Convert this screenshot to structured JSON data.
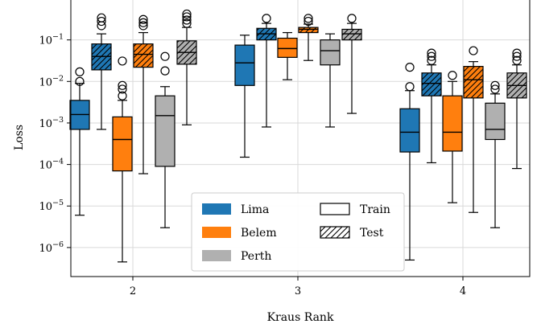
{
  "chart_data": {
    "type": "boxplot",
    "title": "",
    "xlabel": "Kraus Rank",
    "ylabel": "Loss",
    "yscale": "log",
    "ylim": [
      2e-07,
      1.0
    ],
    "y_ticks": [
      {
        "value": 1e-06,
        "base": "10",
        "exp": "−6"
      },
      {
        "value": 1e-05,
        "base": "10",
        "exp": "−5"
      },
      {
        "value": 0.0001,
        "base": "10",
        "exp": "−4"
      },
      {
        "value": 0.001,
        "base": "10",
        "exp": "−3"
      },
      {
        "value": 0.01,
        "base": "10",
        "exp": "−2"
      },
      {
        "value": 0.1,
        "base": "10",
        "exp": "−1"
      }
    ],
    "categories": [
      "2",
      "3",
      "4"
    ],
    "grid": true,
    "legend_position": "lower-center",
    "devices": [
      {
        "name": "Lima",
        "color": "#1f77b4"
      },
      {
        "name": "Belem",
        "color": "#ff7f0e"
      },
      {
        "name": "Perth",
        "color": "#b0b0b0"
      }
    ],
    "styles": [
      {
        "name": "Train",
        "hatch": false
      },
      {
        "name": "Test",
        "hatch": true
      }
    ],
    "boxes": [
      {
        "category": "2",
        "device": "Lima",
        "split": "Train",
        "whisker_low": 6e-06,
        "q1": 0.0007,
        "median": 0.0016,
        "q3": 0.0035,
        "whisker_high": 0.009,
        "outliers": [
          0.01,
          0.017
        ]
      },
      {
        "category": "2",
        "device": "Lima",
        "split": "Test",
        "whisker_low": 0.0007,
        "q1": 0.019,
        "median": 0.04,
        "q3": 0.08,
        "whisker_high": 0.14,
        "outliers": [
          0.22,
          0.28,
          0.34
        ]
      },
      {
        "category": "2",
        "device": "Belem",
        "split": "Train",
        "whisker_low": 4.5e-07,
        "q1": 7e-05,
        "median": 0.0004,
        "q3": 0.0014,
        "whisker_high": 0.0035,
        "outliers": [
          0.0045,
          0.0065,
          0.008,
          0.031
        ]
      },
      {
        "category": "2",
        "device": "Belem",
        "split": "Test",
        "whisker_low": 6e-05,
        "q1": 0.022,
        "median": 0.045,
        "q3": 0.08,
        "whisker_high": 0.15,
        "outliers": [
          0.22,
          0.26,
          0.31
        ]
      },
      {
        "category": "2",
        "device": "Perth",
        "split": "Train",
        "whisker_low": 3e-06,
        "q1": 9e-05,
        "median": 0.0015,
        "q3": 0.0045,
        "whisker_high": 0.0075,
        "outliers": [
          0.018,
          0.04
        ]
      },
      {
        "category": "2",
        "device": "Perth",
        "split": "Test",
        "whisker_low": 0.0009,
        "q1": 0.026,
        "median": 0.05,
        "q3": 0.095,
        "whisker_high": 0.2,
        "outliers": [
          0.25,
          0.3,
          0.36,
          0.42
        ]
      },
      {
        "category": "3",
        "device": "Lima",
        "split": "Train",
        "whisker_low": 0.00015,
        "q1": 0.008,
        "median": 0.028,
        "q3": 0.075,
        "whisker_high": 0.13,
        "outliers": []
      },
      {
        "category": "3",
        "device": "Lima",
        "split": "Test",
        "whisker_low": 0.0008,
        "q1": 0.1,
        "median": 0.14,
        "q3": 0.19,
        "whisker_high": 0.25,
        "outliers": [
          0.33
        ]
      },
      {
        "category": "3",
        "device": "Belem",
        "split": "Train",
        "whisker_low": 0.011,
        "q1": 0.038,
        "median": 0.062,
        "q3": 0.11,
        "whisker_high": 0.15,
        "outliers": []
      },
      {
        "category": "3",
        "device": "Belem",
        "split": "Test",
        "whisker_low": 0.032,
        "q1": 0.15,
        "median": 0.18,
        "q3": 0.2,
        "whisker_high": 0.24,
        "outliers": [
          0.28,
          0.33
        ]
      },
      {
        "category": "3",
        "device": "Perth",
        "split": "Train",
        "whisker_low": 0.0008,
        "q1": 0.025,
        "median": 0.055,
        "q3": 0.1,
        "whisker_high": 0.14,
        "outliers": []
      },
      {
        "category": "3",
        "device": "Perth",
        "split": "Test",
        "whisker_low": 0.0017,
        "q1": 0.1,
        "median": 0.14,
        "q3": 0.18,
        "whisker_high": 0.25,
        "outliers": [
          0.33
        ]
      },
      {
        "category": "4",
        "device": "Lima",
        "split": "Train",
        "whisker_low": 5e-07,
        "q1": 0.0002,
        "median": 0.0006,
        "q3": 0.0022,
        "whisker_high": 0.006,
        "outliers": [
          0.0075,
          0.022
        ]
      },
      {
        "category": "4",
        "device": "Lima",
        "split": "Test",
        "whisker_low": 0.00011,
        "q1": 0.0045,
        "median": 0.009,
        "q3": 0.016,
        "whisker_high": 0.025,
        "outliers": [
          0.032,
          0.04,
          0.048
        ]
      },
      {
        "category": "4",
        "device": "Belem",
        "split": "Train",
        "whisker_low": 1.2e-05,
        "q1": 0.00021,
        "median": 0.0006,
        "q3": 0.0045,
        "whisker_high": 0.01,
        "outliers": [
          0.014
        ]
      },
      {
        "category": "4",
        "device": "Belem",
        "split": "Test",
        "whisker_low": 7e-06,
        "q1": 0.004,
        "median": 0.011,
        "q3": 0.023,
        "whisker_high": 0.03,
        "outliers": [
          0.055
        ]
      },
      {
        "category": "4",
        "device": "Perth",
        "split": "Train",
        "whisker_low": 3e-06,
        "q1": 0.0004,
        "median": 0.0007,
        "q3": 0.003,
        "whisker_high": 0.005,
        "outliers": [
          0.0065,
          0.008
        ]
      },
      {
        "category": "4",
        "device": "Perth",
        "split": "Test",
        "whisker_low": 8e-05,
        "q1": 0.004,
        "median": 0.008,
        "q3": 0.016,
        "whisker_high": 0.025,
        "outliers": [
          0.032,
          0.04,
          0.048
        ]
      }
    ]
  }
}
